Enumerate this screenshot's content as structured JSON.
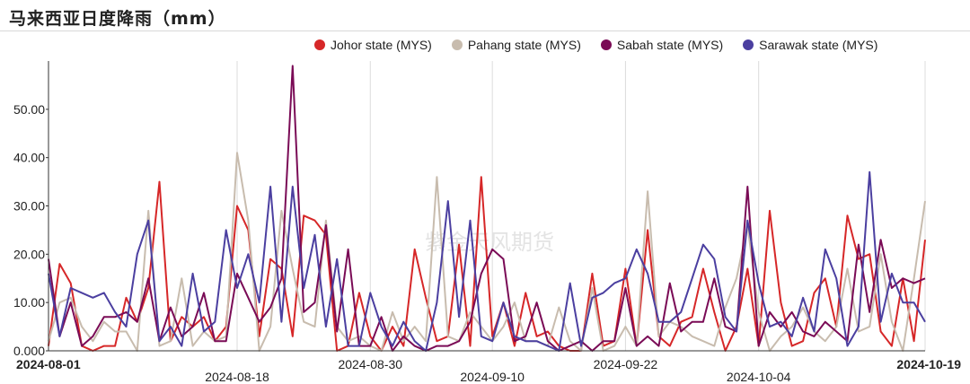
{
  "title": "马来西亚日度降雨（mm）",
  "watermark": "紫金天风期货",
  "chart_data": {
    "type": "line",
    "title": "马来西亚日度降雨（mm）",
    "xlabel": "",
    "ylabel": "",
    "ylim": [
      0,
      60
    ],
    "yticks": [
      "0.000",
      "10.00",
      "20.00",
      "30.00",
      "40.00",
      "50.00"
    ],
    "xticks": [
      {
        "label": "2024-08-01",
        "i": 0,
        "bold": true,
        "row": 0
      },
      {
        "label": "2024-08-18",
        "i": 17,
        "bold": false,
        "row": 1
      },
      {
        "label": "2024-08-30",
        "i": 29,
        "bold": false,
        "row": 0
      },
      {
        "label": "2024-09-10",
        "i": 40,
        "bold": false,
        "row": 1
      },
      {
        "label": "2024-09-22",
        "i": 52,
        "bold": false,
        "row": 0
      },
      {
        "label": "2024-10-04",
        "i": 64,
        "bold": false,
        "row": 1
      },
      {
        "label": "2024-10-19",
        "i": 79,
        "bold": true,
        "row": 0
      }
    ],
    "x_start": "2024-08-01",
    "x_end": "2024-10-19",
    "grid": "vertical",
    "legend": "top",
    "series": [
      {
        "name": "Johor state (MYS)",
        "color": "#d62728",
        "values": [
          1,
          18,
          14,
          1,
          0,
          1,
          1,
          11,
          6,
          13,
          35,
          2,
          7,
          5,
          7,
          2,
          5,
          30,
          25,
          3,
          19,
          17,
          3,
          28,
          27,
          24,
          0,
          1,
          12,
          3,
          0,
          5,
          1,
          21,
          11,
          2,
          3,
          22,
          1,
          36,
          3,
          10,
          1,
          12,
          3,
          4,
          1,
          0,
          0,
          16,
          1,
          2,
          17,
          1,
          25,
          3,
          1,
          6,
          7,
          17,
          8,
          0,
          5,
          17,
          1,
          29,
          10,
          1,
          2,
          12,
          15,
          5,
          28,
          19,
          20,
          4,
          1,
          15,
          2,
          23
        ]
      },
      {
        "name": "Pahang state (MYS)",
        "color": "#c8bcae",
        "values": [
          2,
          10,
          11,
          5,
          2,
          6,
          4,
          4,
          0,
          29,
          1,
          2,
          15,
          1,
          4,
          2,
          3,
          41,
          27,
          0,
          5,
          29,
          17,
          6,
          5,
          27,
          5,
          2,
          3,
          1,
          0,
          8,
          2,
          5,
          2,
          36,
          3,
          2,
          8,
          5,
          2,
          5,
          10,
          2,
          2,
          1,
          9,
          2,
          0,
          13,
          0,
          1,
          5,
          1,
          33,
          3,
          6,
          5,
          3,
          2,
          1,
          9,
          15,
          26,
          8,
          0,
          3,
          5,
          9,
          4,
          2,
          5,
          17,
          4,
          5,
          20,
          6,
          0,
          15,
          31
        ]
      },
      {
        "name": "Sabah state (MYS)",
        "color": "#7a0b56",
        "values": [
          19,
          3,
          10,
          1,
          3,
          7,
          7,
          8,
          6,
          15,
          2,
          9,
          3,
          5,
          12,
          2,
          2,
          16,
          11,
          6,
          9,
          15,
          59,
          8,
          10,
          26,
          4,
          21,
          1,
          1,
          7,
          0,
          3,
          1,
          0,
          1,
          1,
          2,
          6,
          16,
          21,
          19,
          2,
          3,
          10,
          2,
          0,
          1,
          2,
          0,
          2,
          2,
          13,
          1,
          3,
          1,
          14,
          4,
          6,
          6,
          15,
          5,
          4,
          34,
          1,
          8,
          5,
          8,
          4,
          3,
          6,
          4,
          2,
          22,
          8,
          23,
          13,
          15,
          14,
          15
        ]
      },
      {
        "name": "Sarawak state (MYS)",
        "color": "#4b3fa0",
        "values": [
          16,
          3,
          13,
          12,
          11,
          12,
          8,
          5,
          20,
          27,
          2,
          5,
          1,
          16,
          4,
          6,
          25,
          13,
          20,
          10,
          34,
          6,
          34,
          13,
          24,
          5,
          19,
          1,
          1,
          12,
          5,
          1,
          6,
          2,
          0,
          10,
          31,
          7,
          27,
          3,
          2,
          10,
          3,
          2,
          2,
          1,
          0,
          14,
          1,
          11,
          12,
          14,
          15,
          21,
          16,
          6,
          6,
          8,
          15,
          22,
          19,
          7,
          4,
          27,
          14,
          5,
          6,
          3,
          11,
          4,
          21,
          15,
          1,
          5,
          37,
          6,
          16,
          10,
          10,
          6
        ]
      }
    ]
  }
}
